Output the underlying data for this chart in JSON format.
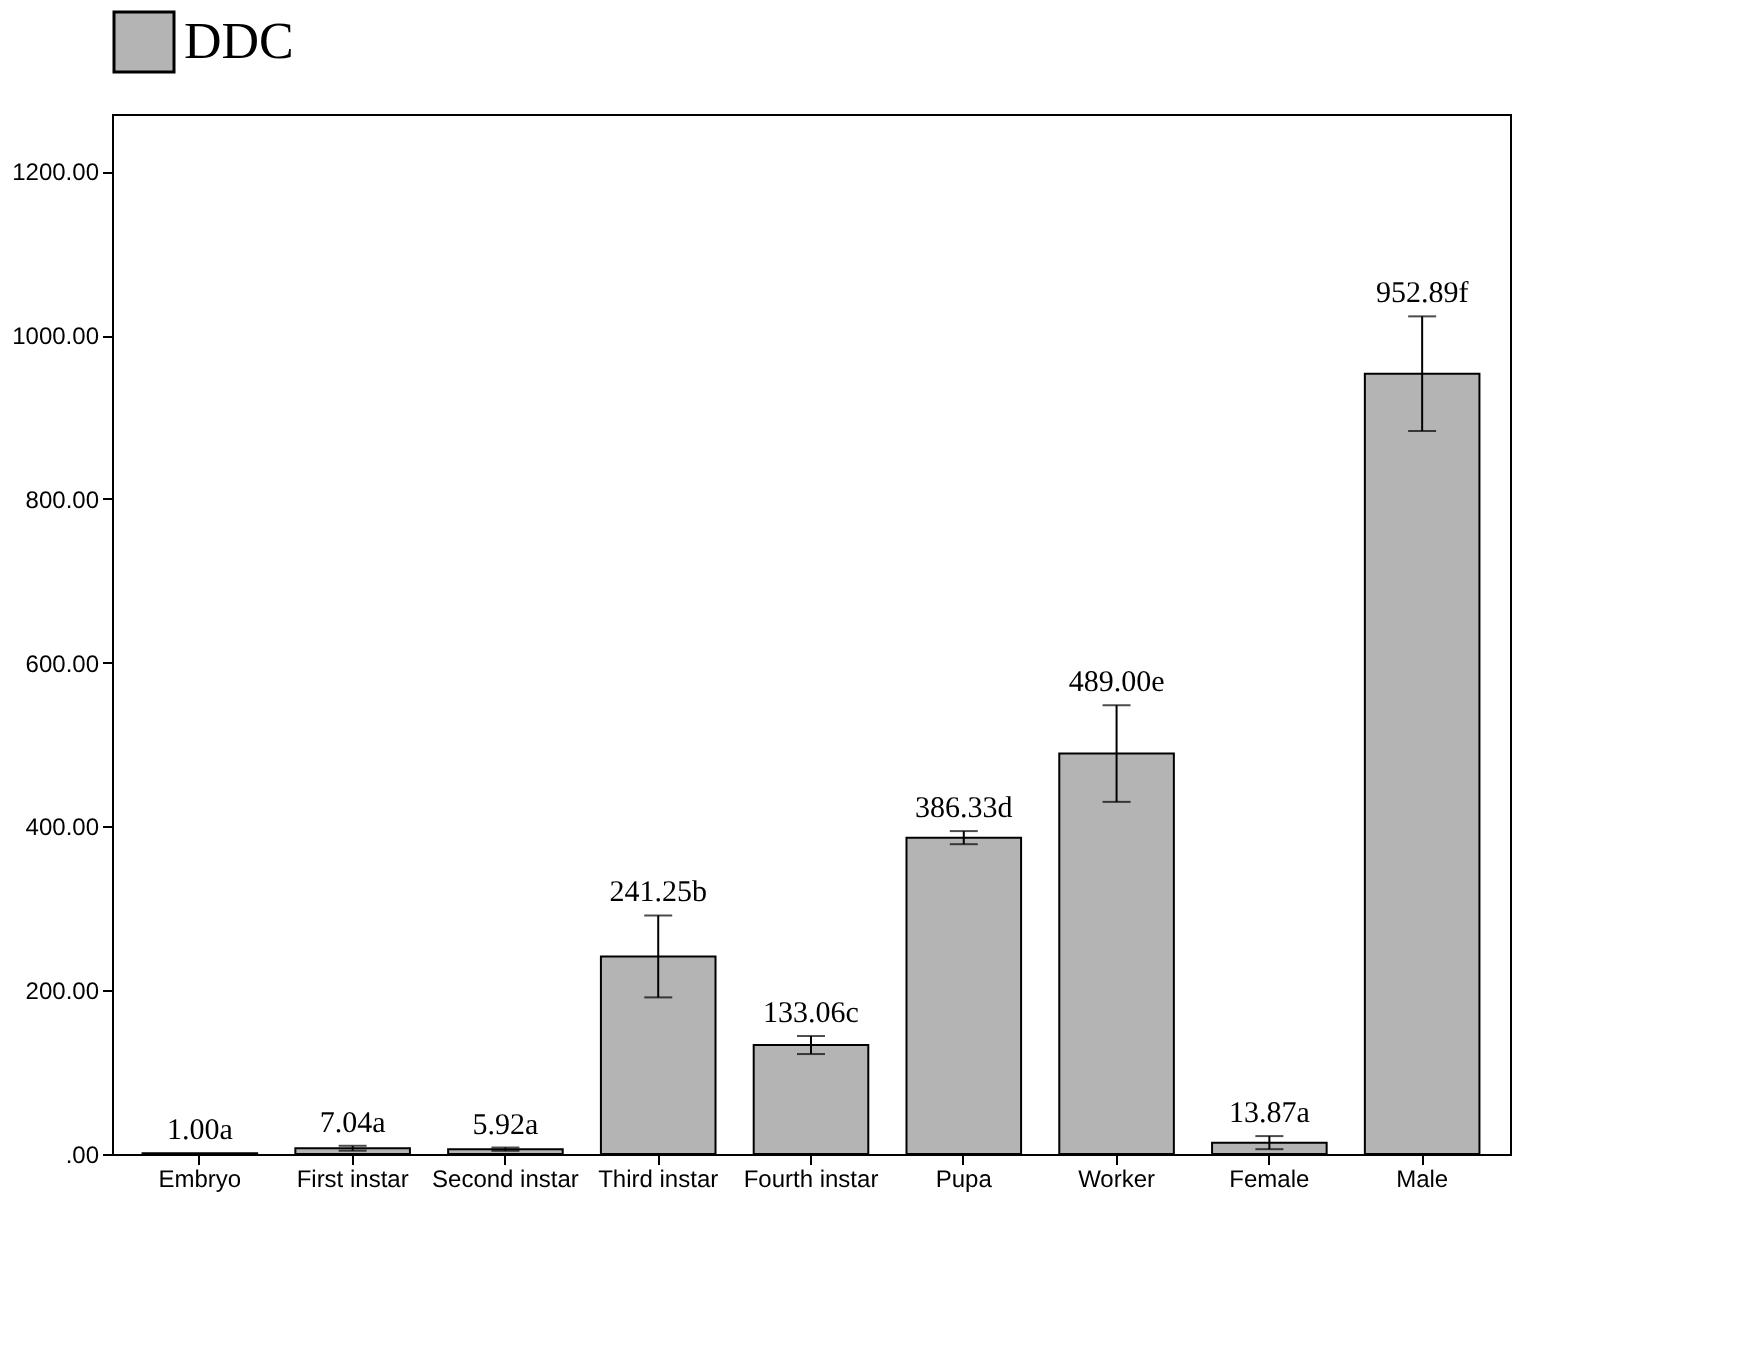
{
  "chart_data": {
    "type": "bar",
    "categories": [
      "Embryo",
      "First instar",
      "Second instar",
      "Third instar",
      "Fourth instar",
      "Pupa",
      "Worker",
      "Female",
      "Male"
    ],
    "series": [
      {
        "name": "DDC",
        "color": "#b4b4b4",
        "values": [
          1.0,
          7.04,
          5.92,
          241.25,
          133.06,
          386.33,
          489.0,
          13.87,
          952.89
        ],
        "errors": [
          null,
          3,
          2,
          50,
          11,
          8,
          59,
          8,
          70
        ],
        "value_labels": [
          "1.00a",
          "7.04a",
          "5.92a",
          "241.25b",
          "133.06c",
          "386.33d",
          "489.00e",
          "13.87a",
          "952.89f"
        ]
      }
    ],
    "ylim": [
      0,
      1270
    ],
    "yticks": [
      {
        "value": 0,
        "label": ".00"
      },
      {
        "value": 200,
        "label": "200.00"
      },
      {
        "value": 400,
        "label": "400.00"
      },
      {
        "value": 600,
        "label": "600.00"
      },
      {
        "value": 800,
        "label": "800.00"
      },
      {
        "value": 1000,
        "label": "1000.00"
      },
      {
        "value": 1200,
        "label": "1200.00"
      }
    ],
    "grid": false,
    "legend": "top"
  }
}
